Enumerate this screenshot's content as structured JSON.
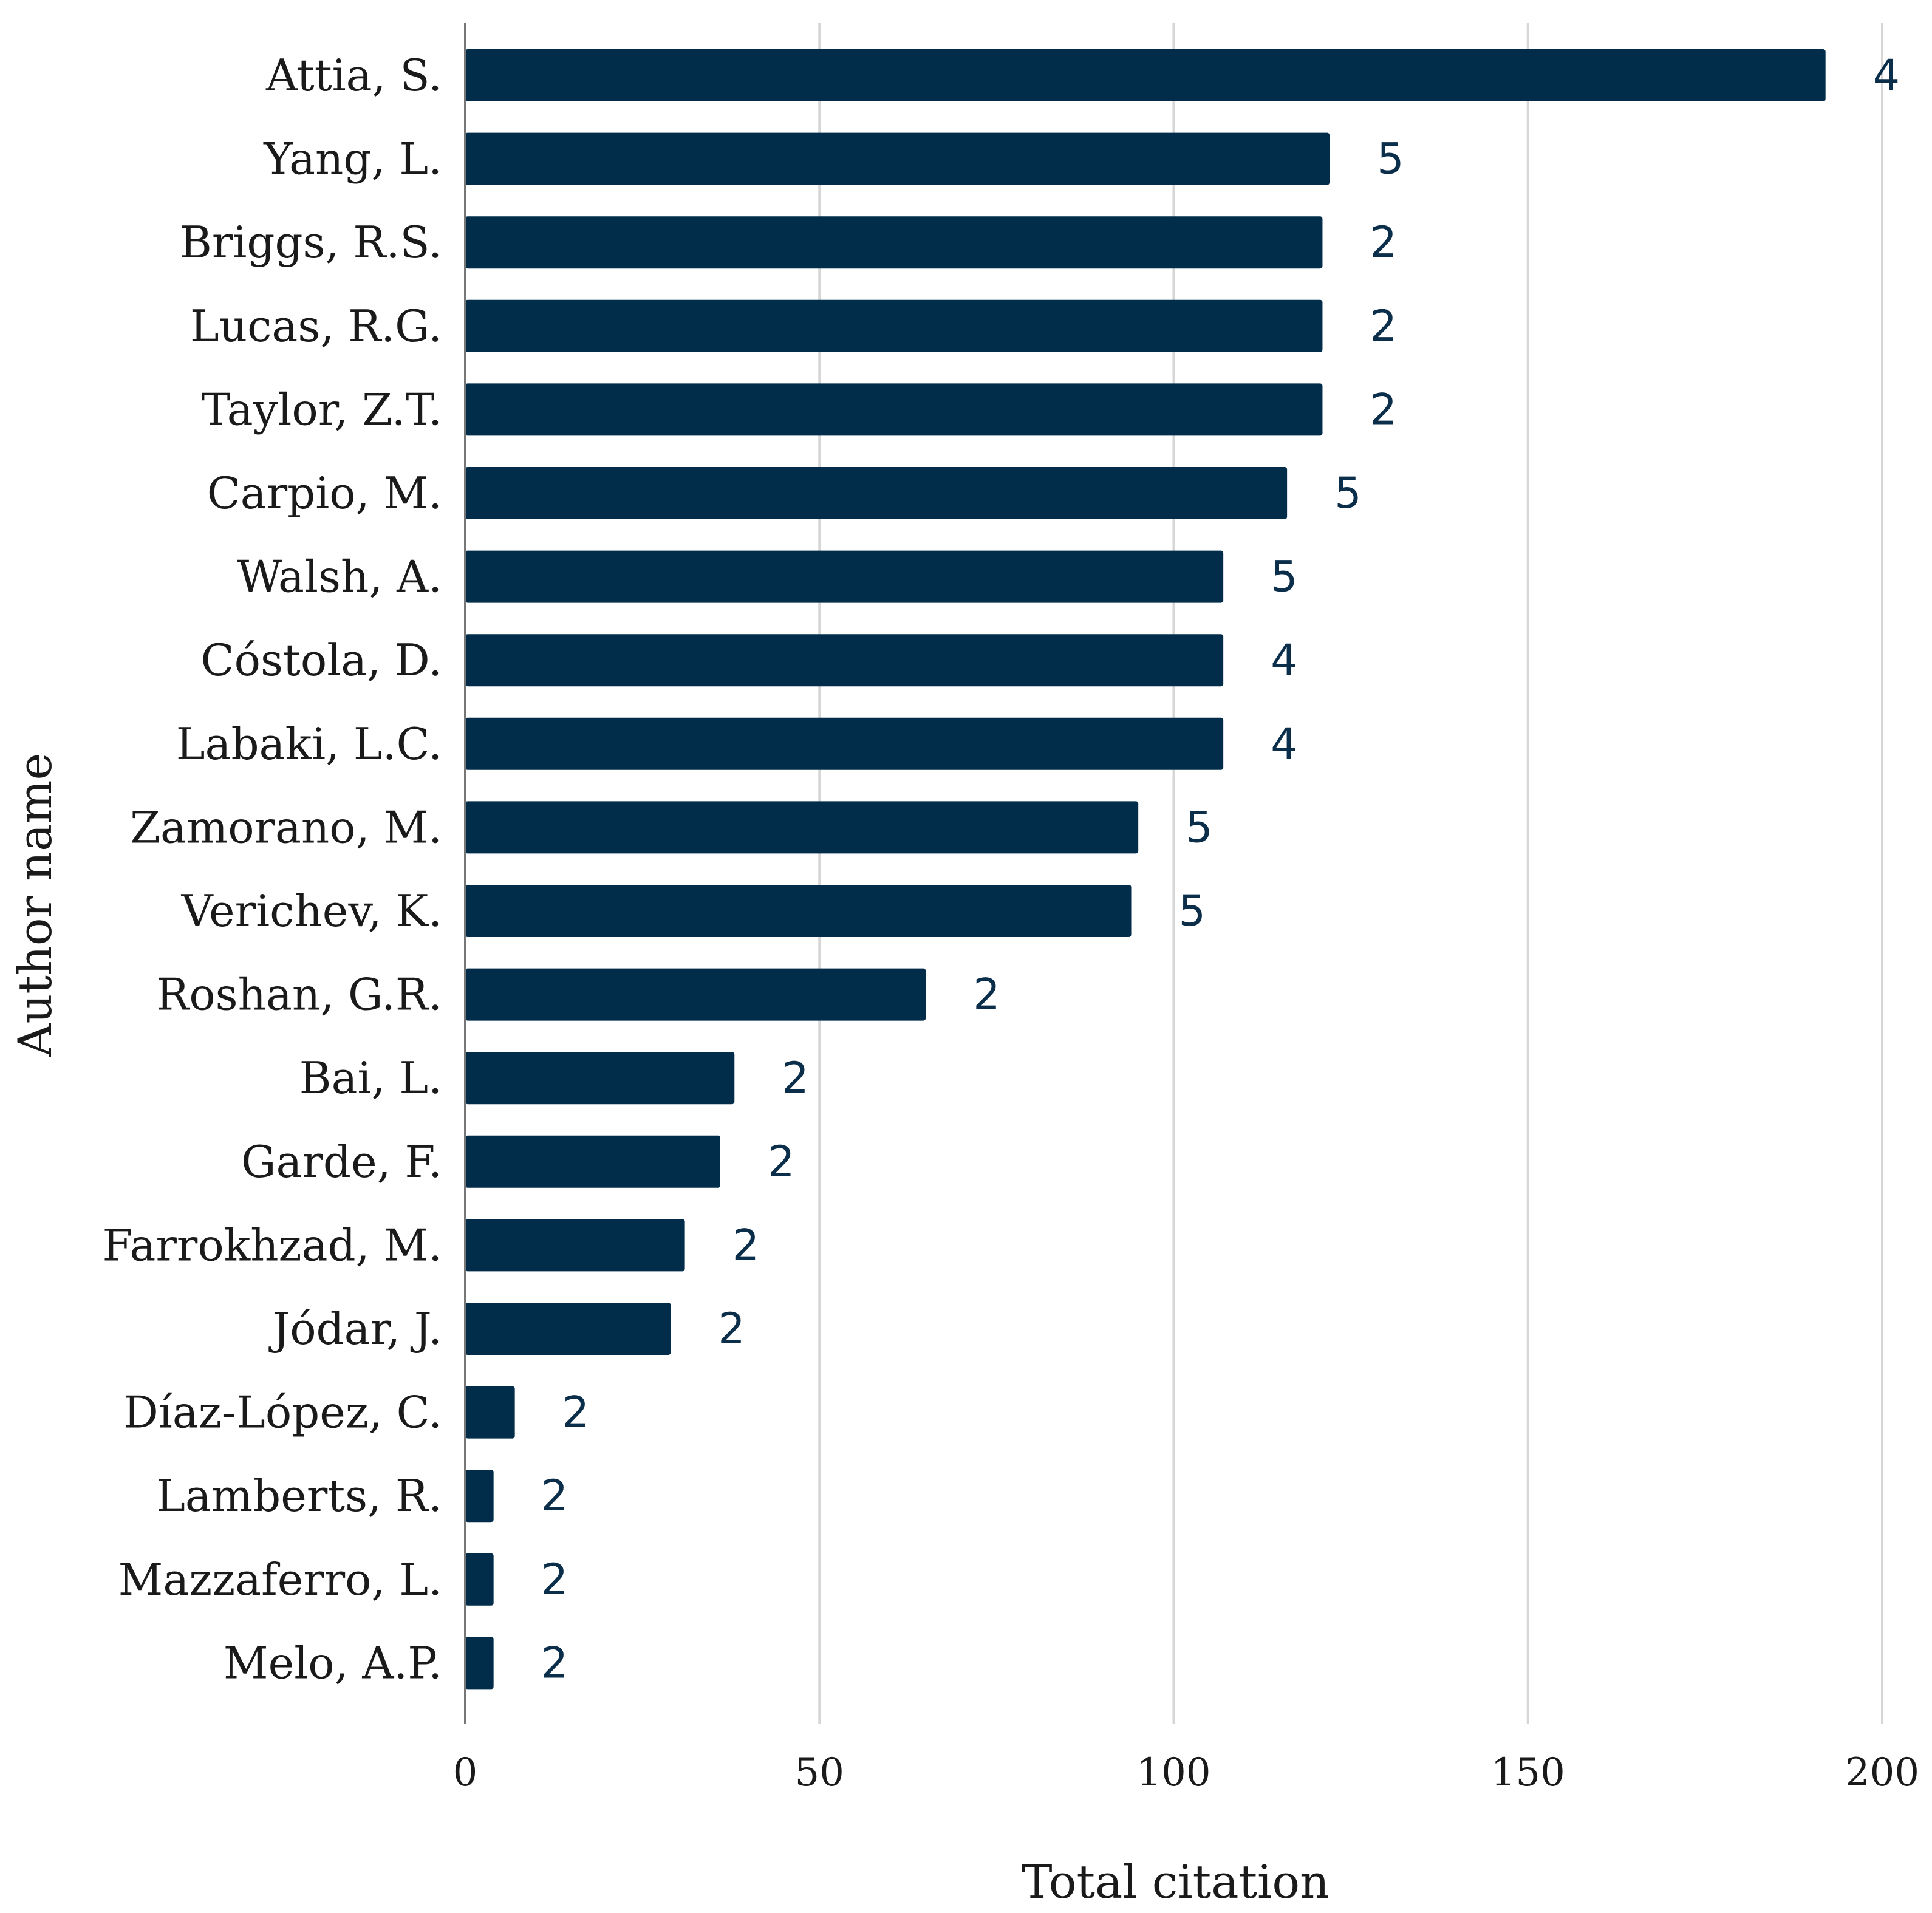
{
  "chart_data": {
    "type": "bar",
    "orientation": "horizontal",
    "xlabel": "Total citation",
    "ylabel": "Author name",
    "xlim": [
      0,
      200
    ],
    "xticks": [
      0,
      50,
      100,
      150,
      200
    ],
    "grid": true,
    "bar_color": "#022d4a",
    "label_color": "#0b2e4a",
    "categories": [
      "Attia, S.",
      "Yang, L.",
      "Briggs, R.S.",
      "Lucas, R.G.",
      "Taylor, Z.T.",
      "Carpio, M.",
      "Walsh, A.",
      "Cóstola, D.",
      "Labaki, L.C.",
      "Zamorano, M.",
      "Verichev, K.",
      "Roshan, G.R.",
      "Bai, L.",
      "Garde, F.",
      "Farrokhzad, M.",
      "Jódar, J.",
      "Díaz-López, C.",
      "Lamberts, R.",
      "Mazzaferro, L.",
      "Melo, A.P."
    ],
    "values": [
      192,
      122,
      121,
      121,
      121,
      116,
      107,
      107,
      107,
      95,
      94,
      65,
      38,
      36,
      31,
      29,
      7,
      4,
      4,
      4
    ],
    "bar_labels": [
      "4",
      "5",
      "2",
      "2",
      "2",
      "5",
      "5",
      "4",
      "4",
      "5",
      "5",
      "2",
      "2",
      "2",
      "2",
      "2",
      "2",
      "2",
      "2",
      "2"
    ]
  }
}
